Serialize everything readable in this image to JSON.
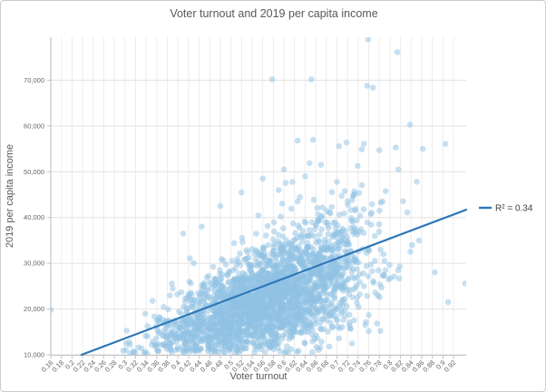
{
  "window": {
    "bg": "#ffffff",
    "border_color": "#c7cdd3"
  },
  "chart_data": {
    "type": "scatter",
    "title": "Voter turnout and 2019 per capita income",
    "xlabel": "Voter turnout",
    "ylabel": "2019 per capita income",
    "xlim": [
      0.16,
      0.944
    ],
    "ylim": [
      10000,
      79400
    ],
    "grid": true,
    "x_ticks": [
      0.16,
      0.18,
      0.2,
      0.22,
      0.24,
      0.26,
      0.28,
      0.3,
      0.32,
      0.34,
      0.36,
      0.38,
      0.4,
      0.42,
      0.44,
      0.46,
      0.48,
      0.5,
      0.52,
      0.54,
      0.56,
      0.58,
      0.6,
      0.62,
      0.64,
      0.66,
      0.68,
      0.7,
      0.72,
      0.74,
      0.76,
      0.78,
      0.8,
      0.82,
      0.84,
      0.86,
      0.88,
      0.9,
      0.92
    ],
    "x_tick_labels": [
      "0.16",
      "0.18",
      "0.2",
      "0.22",
      "0.24",
      "0.26",
      "0.28",
      "0.3",
      "0.32",
      "0.34",
      "0.36",
      "0.38",
      "0.4",
      "0.42",
      "0.44",
      "0.46",
      "0.48",
      "0.5",
      "0.52",
      "0.54",
      "0.56",
      "0.58",
      "0.6",
      "0.62",
      "0.64",
      "0.66",
      "0.68",
      "0.7",
      "0.72",
      "0.74",
      "0.76",
      "0.78",
      "0.8",
      "0.82",
      "0.84",
      "0.86",
      "0.88",
      "0.9",
      "0.92"
    ],
    "y_ticks": [
      10000,
      20000,
      30000,
      40000,
      50000,
      60000,
      70000
    ],
    "y_tick_labels": [
      "10,000",
      "20,000",
      "30,000",
      "40,000",
      "50,000",
      "60,000",
      "70,000"
    ],
    "legend": {
      "position": "right",
      "label": "R² = 0.34"
    },
    "trendline": {
      "color": "#2c77b8",
      "width": 2.2,
      "r_squared": 0.34,
      "x1": 0.218,
      "y1": 10000,
      "x2": 0.944,
      "y2": 41700
    },
    "scatter": {
      "color": "#8fc1e3",
      "opacity": 0.5,
      "radius": 3.3,
      "notable_points": [
        [
          0.16,
          19800
        ],
        [
          0.31,
          10300
        ],
        [
          0.352,
          21800
        ],
        [
          0.39,
          24500
        ],
        [
          0.41,
          36500
        ],
        [
          0.43,
          30000
        ],
        [
          0.445,
          38000
        ],
        [
          0.48,
          42500
        ],
        [
          0.52,
          45500
        ],
        [
          0.56,
          48500
        ],
        [
          0.59,
          46000
        ],
        [
          0.6,
          50500
        ],
        [
          0.63,
          44500
        ],
        [
          0.64,
          49000
        ],
        [
          0.67,
          51500
        ],
        [
          0.7,
          47800
        ],
        [
          0.578,
          70200
        ],
        [
          0.652,
          70200
        ],
        [
          0.759,
          78900
        ],
        [
          0.814,
          76100
        ],
        [
          0.757,
          68800
        ],
        [
          0.768,
          68400
        ],
        [
          0.838,
          60300
        ],
        [
          0.626,
          56800
        ],
        [
          0.655,
          57000
        ],
        [
          0.704,
          55600
        ],
        [
          0.718,
          56400
        ],
        [
          0.747,
          54900
        ],
        [
          0.751,
          56100
        ],
        [
          0.78,
          54700
        ],
        [
          0.811,
          55300
        ],
        [
          0.862,
          55000
        ],
        [
          0.905,
          56100
        ],
        [
          0.942,
          25600
        ],
        [
          0.91,
          21500
        ],
        [
          0.885,
          28000
        ],
        [
          0.842,
          34000
        ]
      ],
      "cloud_generator": {
        "seed": 1337,
        "count": 2600,
        "x_center": 0.573,
        "x_sd": 0.094,
        "x_min": 0.295,
        "x_max": 0.938,
        "trend_intercept": 474,
        "trend_slope": 43700,
        "y_offset": -3300,
        "y_sd_base": 2600,
        "y_sd_span": 6500,
        "skew_prob": 0.22,
        "skew_base": 6000,
        "skew_span": 16000,
        "y_min": 10250,
        "y_max": 61500
      }
    },
    "axis_style": {
      "grid_v_color": "#ececec",
      "grid_h_color": "#e2e2e2",
      "axis_left_color": "#b4b8bc",
      "axis_bottom_color": "#c2c2c2",
      "tick_color": "#c2c2c2",
      "tick_label_color": "#666666",
      "title_color": "#595959",
      "legend_text_color": "#3d3d3d"
    }
  }
}
